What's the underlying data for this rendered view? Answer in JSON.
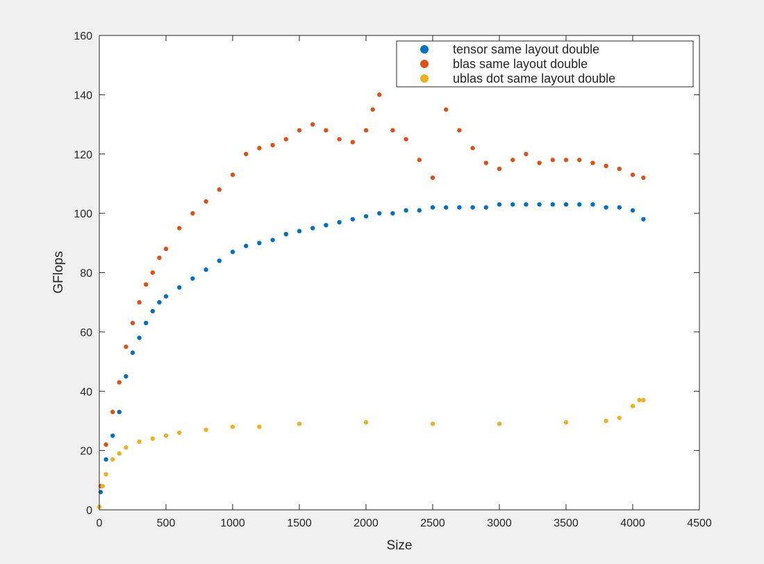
{
  "chart_data": {
    "type": "scatter",
    "title": "",
    "xlabel": "Size",
    "ylabel": "GFlops",
    "xlim": [
      0,
      4500
    ],
    "ylim": [
      0,
      160
    ],
    "xticks": [
      0,
      500,
      1000,
      1500,
      2000,
      2500,
      3000,
      3500,
      4000,
      4500
    ],
    "yticks": [
      0,
      20,
      40,
      60,
      80,
      100,
      120,
      140,
      160
    ],
    "grid": false,
    "legend_position": "top-right",
    "series": [
      {
        "name": "tensor same layout double",
        "color": "#0072BD",
        "x": [
          10,
          50,
          100,
          150,
          200,
          250,
          300,
          350,
          400,
          450,
          500,
          600,
          700,
          800,
          900,
          1000,
          1100,
          1200,
          1300,
          1400,
          1500,
          1600,
          1700,
          1800,
          1900,
          2000,
          2100,
          2200,
          2300,
          2400,
          2500,
          2600,
          2700,
          2800,
          2900,
          3000,
          3100,
          3200,
          3300,
          3400,
          3500,
          3600,
          3700,
          3800,
          3900,
          4000,
          4080
        ],
        "y": [
          6,
          17,
          25,
          33,
          45,
          53,
          58,
          63,
          67,
          70,
          72,
          75,
          78,
          81,
          84,
          87,
          89,
          90,
          91,
          93,
          94,
          95,
          96,
          97,
          98,
          99,
          100,
          100,
          101,
          101,
          102,
          102,
          102,
          102,
          102,
          103,
          103,
          103,
          103,
          103,
          103,
          103,
          103,
          102,
          102,
          101,
          98
        ]
      },
      {
        "name": "blas same layout double",
        "color": "#D95319",
        "x": [
          10,
          50,
          100,
          150,
          200,
          250,
          300,
          350,
          400,
          450,
          500,
          600,
          700,
          800,
          900,
          1000,
          1100,
          1200,
          1300,
          1400,
          1500,
          1600,
          1700,
          1800,
          1900,
          2000,
          2050,
          2100,
          2200,
          2300,
          2400,
          2500,
          2600,
          2700,
          2800,
          2900,
          3000,
          3100,
          3200,
          3300,
          3400,
          3500,
          3600,
          3700,
          3800,
          3900,
          4000,
          4080
        ],
        "y": [
          8,
          22,
          33,
          43,
          55,
          63,
          70,
          76,
          80,
          85,
          88,
          95,
          100,
          104,
          108,
          113,
          120,
          122,
          123,
          125,
          128,
          130,
          128,
          125,
          124,
          128,
          135,
          140,
          128,
          125,
          118,
          112,
          135,
          128,
          122,
          117,
          115,
          118,
          120,
          117,
          118,
          118,
          118,
          117,
          116,
          115,
          113,
          112
        ]
      },
      {
        "name": "ublas dot same layout double",
        "color": "#EDB120",
        "x": [
          0,
          25,
          50,
          100,
          150,
          200,
          300,
          400,
          500,
          600,
          800,
          1000,
          1200,
          1500,
          2000,
          2500,
          3000,
          3500,
          3800,
          3900,
          4000,
          4050,
          4080
        ],
        "y": [
          1,
          8,
          12,
          17,
          19,
          21,
          23,
          24,
          25,
          26,
          27,
          28,
          28,
          29,
          29.5,
          29,
          29,
          29.5,
          30,
          31,
          35,
          37,
          37
        ]
      }
    ]
  }
}
